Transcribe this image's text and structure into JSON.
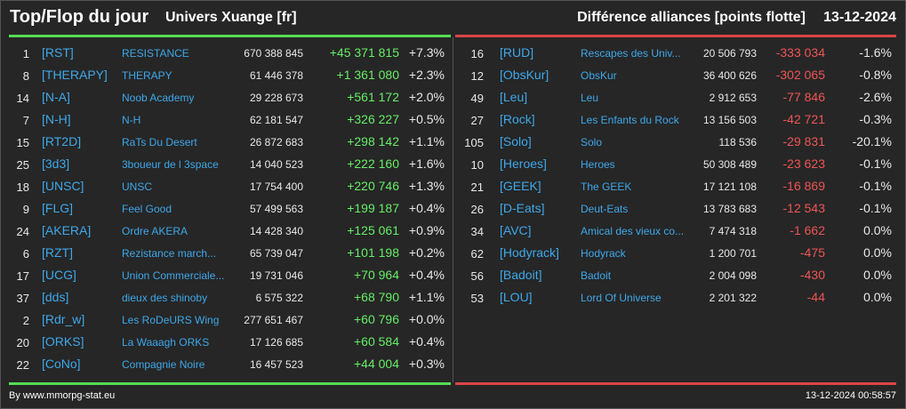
{
  "header": {
    "title": "Top/Flop du jour",
    "subtitle": "Univers Xuange [fr]",
    "metric": "Différence alliances [points flotte]",
    "date": "13-12-2024"
  },
  "top": [
    {
      "rank": "1",
      "tag": "[RST]",
      "name": "RESISTANCE",
      "points": "670 388 845",
      "diff": "+45 371 815",
      "pct": "+7.3%"
    },
    {
      "rank": "8",
      "tag": "[THERAPY]",
      "name": "THERAPY",
      "points": "61 446 378",
      "diff": "+1 361 080",
      "pct": "+2.3%"
    },
    {
      "rank": "14",
      "tag": "[N-A]",
      "name": "Noob Academy",
      "points": "29 228 673",
      "diff": "+561 172",
      "pct": "+2.0%"
    },
    {
      "rank": "7",
      "tag": "[N-H]",
      "name": "N-H",
      "points": "62 181 547",
      "diff": "+326 227",
      "pct": "+0.5%"
    },
    {
      "rank": "15",
      "tag": "[RT2D]",
      "name": "RaTs Du Desert",
      "points": "26 872 683",
      "diff": "+298 142",
      "pct": "+1.1%"
    },
    {
      "rank": "25",
      "tag": "[3d3]",
      "name": "3boueur de l 3space",
      "points": "14 040 523",
      "diff": "+222 160",
      "pct": "+1.6%"
    },
    {
      "rank": "18",
      "tag": "[UNSC]",
      "name": "UNSC",
      "points": "17 754 400",
      "diff": "+220 746",
      "pct": "+1.3%"
    },
    {
      "rank": "9",
      "tag": "[FLG]",
      "name": "Feel Good",
      "points": "57 499 563",
      "diff": "+199 187",
      "pct": "+0.4%"
    },
    {
      "rank": "24",
      "tag": "[AKERA]",
      "name": "Ordre AKERA",
      "points": "14 428 340",
      "diff": "+125 061",
      "pct": "+0.9%"
    },
    {
      "rank": "6",
      "tag": "[RZT]",
      "name": "Rezistance march...",
      "points": "65 739 047",
      "diff": "+101 198",
      "pct": "+0.2%"
    },
    {
      "rank": "17",
      "tag": "[UCG]",
      "name": "Union Commerciale...",
      "points": "19 731 046",
      "diff": "+70 964",
      "pct": "+0.4%"
    },
    {
      "rank": "37",
      "tag": "[dds]",
      "name": "dieux des shinoby",
      "points": "6 575 322",
      "diff": "+68 790",
      "pct": "+1.1%"
    },
    {
      "rank": "2",
      "tag": "[Rdr_w]",
      "name": "Les RoDeURS Wing",
      "points": "277 651 467",
      "diff": "+60 796",
      "pct": "+0.0%"
    },
    {
      "rank": "20",
      "tag": "[ORKS]",
      "name": "La Waaagh ORKS",
      "points": "17 126 685",
      "diff": "+60 584",
      "pct": "+0.4%"
    },
    {
      "rank": "22",
      "tag": "[CoNo]",
      "name": "Compagnie Noire",
      "points": "16 457 523",
      "diff": "+44 004",
      "pct": "+0.3%"
    }
  ],
  "flop": [
    {
      "rank": "16",
      "tag": "[RUD]",
      "name": "Rescapes des Univ...",
      "points": "20 506 793",
      "diff": "-333 034",
      "pct": "-1.6%"
    },
    {
      "rank": "12",
      "tag": "[ObsKur]",
      "name": "ObsKur",
      "points": "36 400 626",
      "diff": "-302 065",
      "pct": "-0.8%"
    },
    {
      "rank": "49",
      "tag": "[Leu]",
      "name": "Leu",
      "points": "2 912 653",
      "diff": "-77 846",
      "pct": "-2.6%"
    },
    {
      "rank": "27",
      "tag": "[Rock]",
      "name": "Les Enfants du Rock",
      "points": "13 156 503",
      "diff": "-42 721",
      "pct": "-0.3%"
    },
    {
      "rank": "105",
      "tag": "[Solo]",
      "name": "Solo",
      "points": "118 536",
      "diff": "-29 831",
      "pct": "-20.1%"
    },
    {
      "rank": "10",
      "tag": "[Heroes]",
      "name": "Heroes",
      "points": "50 308 489",
      "diff": "-23 623",
      "pct": "-0.1%"
    },
    {
      "rank": "21",
      "tag": "[GEEK]",
      "name": "The GEEK",
      "points": "17 121 108",
      "diff": "-16 869",
      "pct": "-0.1%"
    },
    {
      "rank": "26",
      "tag": "[D-Eats]",
      "name": "Deut-Eats",
      "points": "13 783 683",
      "diff": "-12 543",
      "pct": "-0.1%"
    },
    {
      "rank": "34",
      "tag": "[AVC]",
      "name": "Amical des vieux co...",
      "points": "7 474 318",
      "diff": "-1 662",
      "pct": "0.0%"
    },
    {
      "rank": "62",
      "tag": "[Hodyrack]",
      "name": "Hodyrack",
      "points": "1 200 701",
      "diff": "-475",
      "pct": "0.0%"
    },
    {
      "rank": "56",
      "tag": "[Badoit]",
      "name": "Badoit",
      "points": "2 004 098",
      "diff": "-430",
      "pct": "0.0%"
    },
    {
      "rank": "53",
      "tag": "[LOU]",
      "name": "Lord Of Universe",
      "points": "2 201 322",
      "diff": "-44",
      "pct": "0.0%"
    }
  ],
  "footer": {
    "source": "By www.mmorpg-stat.eu",
    "timestamp": "13-12-2024 00:58:57"
  },
  "colors": {
    "background": "#262626",
    "top_accent": "#55dd55",
    "flop_accent": "#dd4444",
    "tag_color": "#3ea8ea",
    "gain_color": "#66ee66",
    "loss_color": "#ee5555"
  }
}
